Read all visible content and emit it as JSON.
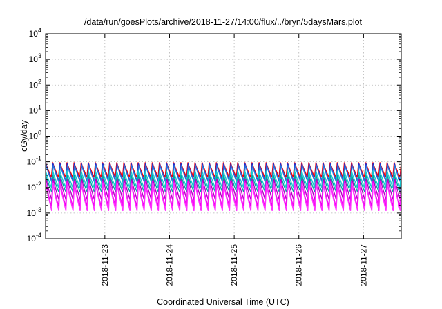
{
  "chart_data": {
    "type": "line",
    "title": "/data/run/goesPlots/archive/2018-11-27/14:00/flux/../bryn/5daysMars.plot",
    "xlabel": "Coordinated Universal Time (UTC)",
    "ylabel": "cGy/day",
    "yscale": "log",
    "ylim": [
      0.0001,
      10000
    ],
    "xlim": [
      "2018-11-22 02:00",
      "2018-11-27 14:00"
    ],
    "grid": true,
    "x_ticks": [
      "2018-11-23",
      "2018-11-24",
      "2018-11-25",
      "2018-11-26",
      "2018-11-27"
    ],
    "y_ticks": [
      {
        "base": "10",
        "exp": "-4"
      },
      {
        "base": "10",
        "exp": "-3"
      },
      {
        "base": "10",
        "exp": "-2"
      },
      {
        "base": "10",
        "exp": "-1"
      },
      {
        "base": "10",
        "exp": "0"
      },
      {
        "base": "10",
        "exp": "1"
      },
      {
        "base": "10",
        "exp": "2"
      },
      {
        "base": "10",
        "exp": "3"
      },
      {
        "base": "10",
        "exp": "4"
      }
    ],
    "pattern": {
      "cycles": 50,
      "description_period_hours": 2.68
    },
    "series": [
      {
        "color": "#ff0000",
        "peak": 0.095,
        "trough": 0.025
      },
      {
        "color": "#1f2fd0",
        "peak": 0.085,
        "trough": 0.018
      },
      {
        "color": "#2a6fd8",
        "peak": 0.075,
        "trough": 0.015
      },
      {
        "color": "#14c8d2",
        "peak": 0.045,
        "trough": 0.01
      },
      {
        "color": "#00a6a0",
        "peak": 0.03,
        "trough": 0.0065
      },
      {
        "color": "#b000c0",
        "peak": 0.022,
        "trough": 0.003
      },
      {
        "color": "#ee00ee",
        "peak": 0.018,
        "trough": 0.0018
      },
      {
        "color": "#ff30ff",
        "peak": 0.014,
        "trough": 0.0012
      }
    ]
  }
}
